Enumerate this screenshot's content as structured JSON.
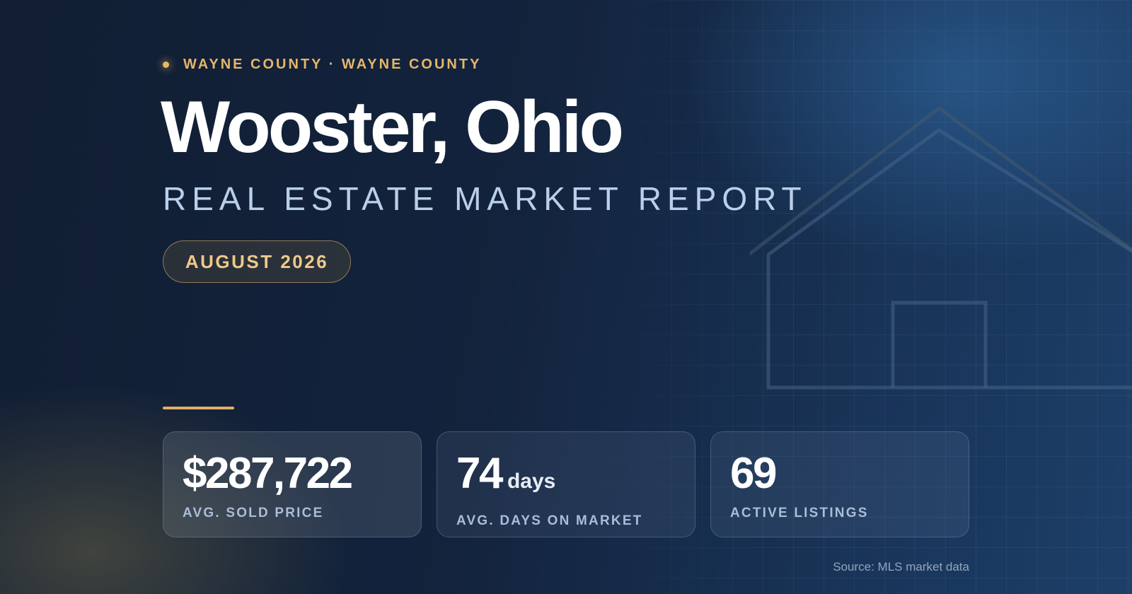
{
  "header": {
    "eyebrow": "WAYNE COUNTY · WAYNE COUNTY",
    "title": "Wooster, Ohio",
    "subtitle": "REAL ESTATE MARKET REPORT",
    "date": "AUGUST 2026"
  },
  "stats": [
    {
      "value": "$287,722",
      "unit": "",
      "label": "AVG. SOLD PRICE"
    },
    {
      "value": "74",
      "unit": "days",
      "label": "AVG. DAYS ON MARKET"
    },
    {
      "value": "69",
      "unit": "",
      "label": "ACTIVE LISTINGS"
    }
  ],
  "footer": {
    "source": "Source: MLS market data"
  },
  "colors": {
    "accent": "#e4b66a",
    "background": "#13233d",
    "text": "#ffffff",
    "subtitle": "#b9cfea"
  },
  "icons": {
    "house": "house-outline-icon",
    "dot": "dot-icon"
  }
}
